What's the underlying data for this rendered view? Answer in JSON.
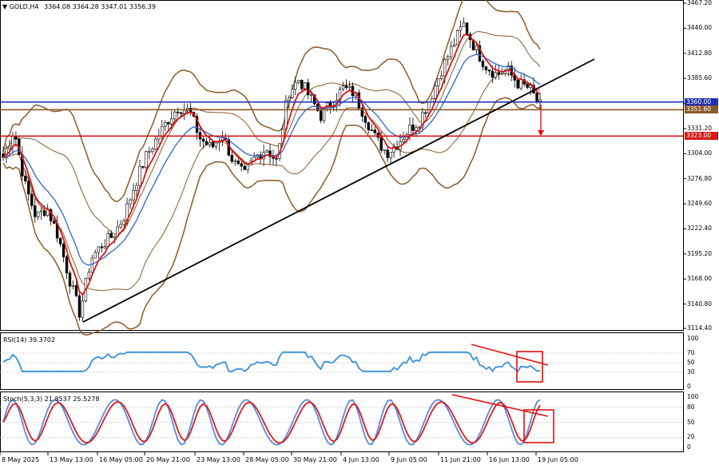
{
  "header": {
    "symbol": "GOLD,H4",
    "ohlc": "3364.08 3364.28 3347.01 3356.39"
  },
  "price_axis": [
    "3467.20",
    "3440.00",
    "3412.80",
    "3385.60",
    "3358.40",
    "3331.20",
    "3304.00",
    "3276.80",
    "3249.60",
    "3222.40",
    "3195.20",
    "3168.00",
    "3140.80",
    "3114.40"
  ],
  "price_tags": [
    {
      "label": "3360.00",
      "color": "#1f2fb5"
    },
    {
      "label": "3351.60",
      "color": "#8b5a2b"
    },
    {
      "label": "3323.00",
      "color": "#d41818"
    }
  ],
  "time_axis": [
    "8 May 2025",
    "13 May 13:00",
    "16 May 05:00",
    "20 May 21:00",
    "23 May 13:00",
    "28 May 05:00",
    "30 May 21:00",
    "4 Jun 13:00",
    "9 Jun 05:00",
    "11 Jun 21:00",
    "16 Jun 13:00",
    "19 Jun 05:00"
  ],
  "rsi": {
    "title": "RSI(14) 39.3702",
    "levels": [
      "100",
      "70",
      "50",
      "30",
      "0"
    ]
  },
  "stoch": {
    "title": "Stoch(5,3,3) 21.8537 25.5278",
    "levels": [
      "100",
      "80",
      "50",
      "20",
      "0"
    ]
  },
  "colors": {
    "ema_fast": "#dc1414",
    "ema_slow": "#3c6fd0",
    "bollinger": "#8b5a2b",
    "support": "#1f2fb5",
    "resistance": "#d41818",
    "trendline": "#000000",
    "rsi_line": "#3a8fd8",
    "stoch_main": "#5b8ae0",
    "stoch_signal": "#d81e1e"
  },
  "chart_data": {
    "type": "candlestick",
    "symbol": "GOLD",
    "timeframe": "H4",
    "ylim": [
      3114.4,
      3467.2
    ],
    "horizontal_levels": [
      3360.0,
      3351.6,
      3323.0
    ],
    "close_path": [
      3300,
      3330,
      3270,
      3235,
      3245,
      3215,
      3170,
      3130,
      3190,
      3205,
      3215,
      3235,
      3270,
      3300,
      3320,
      3340,
      3355,
      3350,
      3320,
      3310,
      3325,
      3295,
      3280,
      3300,
      3310,
      3295,
      3370,
      3385,
      3365,
      3345,
      3360,
      3375,
      3370,
      3345,
      3320,
      3305,
      3315,
      3330,
      3340,
      3365,
      3395,
      3420,
      3445,
      3420,
      3400,
      3390,
      3395,
      3380,
      3375,
      3356
    ]
  }
}
